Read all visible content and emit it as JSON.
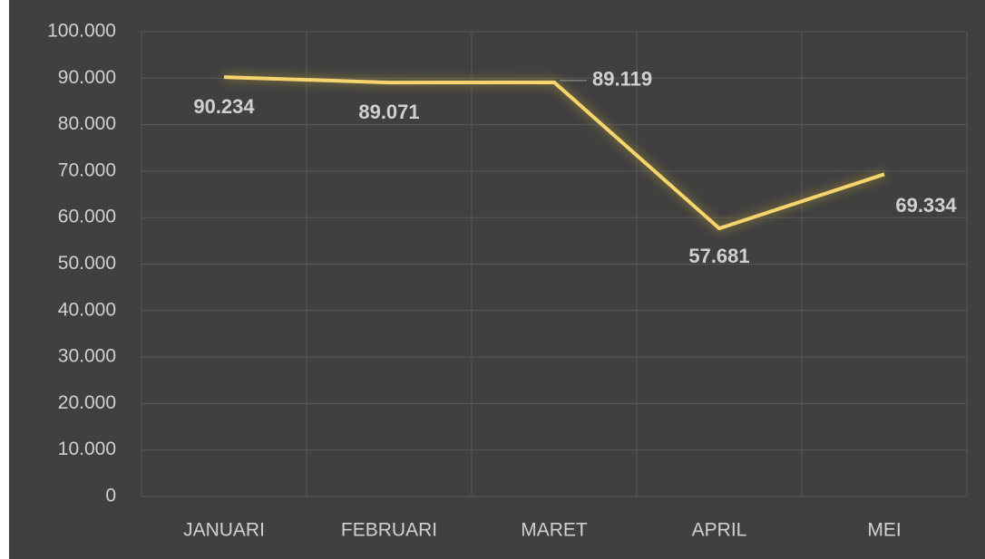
{
  "chart_data": {
    "type": "line",
    "categories": [
      "JANUARI",
      "FEBRUARI",
      "MARET",
      "APRIL",
      "MEI"
    ],
    "series": [
      {
        "color": "#f7d56e",
        "values": [
          90234,
          89071,
          89119,
          57681,
          69334
        ],
        "value_labels": [
          "90.234",
          "89.071",
          "89.119",
          "57.681",
          "69.334"
        ]
      }
    ],
    "ylim": [
      0,
      100000
    ],
    "yticks": [
      0,
      {
        "value": 10000,
        "label": "10.000"
      },
      {
        "value": 20000,
        "label": "20.000"
      },
      {
        "value": 30000,
        "label": "30.000"
      },
      {
        "value": 40000,
        "label": "40.000"
      },
      {
        "value": 50000,
        "label": "50.000"
      },
      {
        "value": 60000,
        "label": "60.000"
      },
      {
        "value": 70000,
        "label": "70.000"
      },
      {
        "value": 80000,
        "label": "80.000"
      },
      {
        "value": 90000,
        "label": "90.000"
      },
      {
        "value": 100000,
        "label": "100.000"
      }
    ],
    "grid": true
  }
}
